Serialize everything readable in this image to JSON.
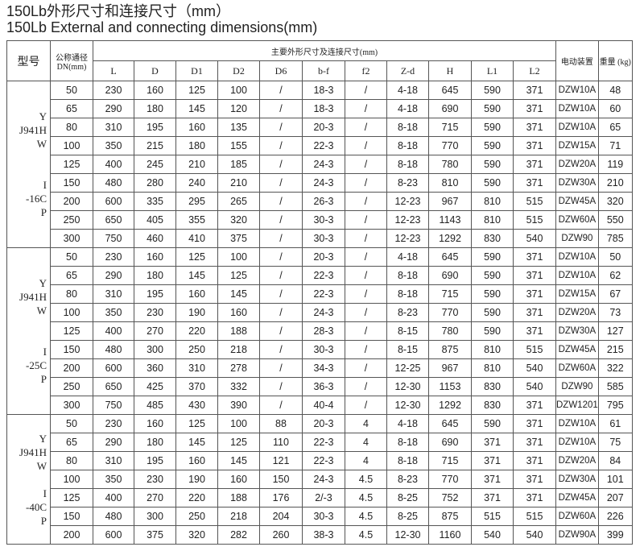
{
  "title_cn": "150Lb外形尺寸和连接尺寸（mm）",
  "title_en": "150Lb External and connecting dimensions(mm)",
  "header": {
    "model": "型号",
    "dn": "公称通径 DN(mm)",
    "group": "主要外形尺寸及连接尺寸(mm)",
    "actuator": "电动装置",
    "weight": "重量 (kg)",
    "cols": [
      "L",
      "D",
      "D1",
      "D2",
      "D6",
      "b-f",
      "f2",
      "Z-d",
      "H",
      "L1",
      "L2"
    ]
  },
  "sections": [
    {
      "model": [
        "Y",
        "J941H",
        "W",
        "",
        "",
        "I",
        "-16C",
        "P"
      ],
      "rows": [
        [
          "50",
          "230",
          "160",
          "125",
          "100",
          "/",
          "18-3",
          "/",
          "4-18",
          "645",
          "590",
          "371",
          "DZW10A",
          "48"
        ],
        [
          "65",
          "290",
          "180",
          "145",
          "120",
          "/",
          "18-3",
          "/",
          "4-18",
          "690",
          "590",
          "371",
          "DZW10A",
          "60"
        ],
        [
          "80",
          "310",
          "195",
          "160",
          "135",
          "/",
          "20-3",
          "/",
          "8-18",
          "715",
          "590",
          "371",
          "DZW10A",
          "65"
        ],
        [
          "100",
          "350",
          "215",
          "180",
          "155",
          "/",
          "22-3",
          "/",
          "8-18",
          "770",
          "590",
          "371",
          "DZW15A",
          "71"
        ],
        [
          "125",
          "400",
          "245",
          "210",
          "185",
          "/",
          "24-3",
          "/",
          "8-18",
          "780",
          "590",
          "371",
          "DZW20A",
          "119"
        ],
        [
          "150",
          "480",
          "280",
          "240",
          "210",
          "/",
          "24-3",
          "/",
          "8-23",
          "810",
          "590",
          "371",
          "DZW30A",
          "210"
        ],
        [
          "200",
          "600",
          "335",
          "295",
          "265",
          "/",
          "26-3",
          "/",
          "12-23",
          "967",
          "810",
          "515",
          "DZW45A",
          "320"
        ],
        [
          "250",
          "650",
          "405",
          "355",
          "320",
          "/",
          "30-3",
          "/",
          "12-23",
          "1143",
          "810",
          "515",
          "DZW60A",
          "550"
        ],
        [
          "300",
          "750",
          "460",
          "410",
          "375",
          "/",
          "30-3",
          "/",
          "12-23",
          "1292",
          "830",
          "540",
          "DZW90",
          "785"
        ]
      ]
    },
    {
      "model": [
        "Y",
        "J941H",
        "W",
        "",
        "",
        "I",
        "-25C",
        "P"
      ],
      "rows": [
        [
          "50",
          "230",
          "160",
          "125",
          "100",
          "/",
          "20-3",
          "/",
          "4-18",
          "645",
          "590",
          "371",
          "DZW10A",
          "50"
        ],
        [
          "65",
          "290",
          "180",
          "145",
          "125",
          "/",
          "22-3",
          "/",
          "8-18",
          "690",
          "590",
          "371",
          "DZW10A",
          "62"
        ],
        [
          "80",
          "310",
          "195",
          "160",
          "145",
          "/",
          "22-3",
          "/",
          "8-18",
          "715",
          "590",
          "371",
          "DZW15A",
          "67"
        ],
        [
          "100",
          "350",
          "230",
          "190",
          "160",
          "/",
          "24-3",
          "/",
          "8-23",
          "770",
          "590",
          "371",
          "DZW20A",
          "73"
        ],
        [
          "125",
          "400",
          "270",
          "220",
          "188",
          "/",
          "28-3",
          "/",
          "8-15",
          "780",
          "590",
          "371",
          "DZW30A",
          "127"
        ],
        [
          "150",
          "480",
          "300",
          "250",
          "218",
          "/",
          "30-3",
          "/",
          "8-15",
          "875",
          "810",
          "515",
          "DZW45A",
          "215"
        ],
        [
          "200",
          "600",
          "360",
          "310",
          "278",
          "/",
          "34-3",
          "/",
          "12-25",
          "967",
          "810",
          "540",
          "DZW60A",
          "322"
        ],
        [
          "250",
          "650",
          "425",
          "370",
          "332",
          "/",
          "36-3",
          "/",
          "12-30",
          "1153",
          "830",
          "540",
          "DZW90",
          "585"
        ],
        [
          "300",
          "750",
          "485",
          "430",
          "390",
          "/",
          "40-4",
          "/",
          "12-30",
          "1292",
          "830",
          "371",
          "DZW1201",
          "795"
        ]
      ]
    },
    {
      "model": [
        "Y",
        "J941H",
        "W",
        "",
        "I",
        "-40C",
        "P"
      ],
      "rows": [
        [
          "50",
          "230",
          "160",
          "125",
          "100",
          "88",
          "20-3",
          "4",
          "4-18",
          "645",
          "590",
          "371",
          "DZW10A",
          "61"
        ],
        [
          "65",
          "290",
          "180",
          "145",
          "125",
          "110",
          "22-3",
          "4",
          "8-18",
          "690",
          "371",
          "371",
          "DZW10A",
          "75"
        ],
        [
          "80",
          "310",
          "195",
          "160",
          "145",
          "121",
          "22-3",
          "4",
          "8-18",
          "715",
          "371",
          "371",
          "DZW20A",
          "84"
        ],
        [
          "100",
          "350",
          "230",
          "190",
          "160",
          "150",
          "24-3",
          "4.5",
          "8-23",
          "770",
          "371",
          "371",
          "DZW30A",
          "101"
        ],
        [
          "125",
          "400",
          "270",
          "220",
          "188",
          "176",
          "2/-3",
          "4.5",
          "8-25",
          "752",
          "371",
          "371",
          "DZW45A",
          "207"
        ],
        [
          "150",
          "480",
          "300",
          "250",
          "218",
          "204",
          "30-3",
          "4.5",
          "8-25",
          "875",
          "515",
          "515",
          "DZW60A",
          "226"
        ],
        [
          "200",
          "600",
          "375",
          "320",
          "282",
          "260",
          "38-3",
          "4.5",
          "12-30",
          "1160",
          "540",
          "540",
          "DZW90A",
          "399"
        ]
      ]
    }
  ]
}
